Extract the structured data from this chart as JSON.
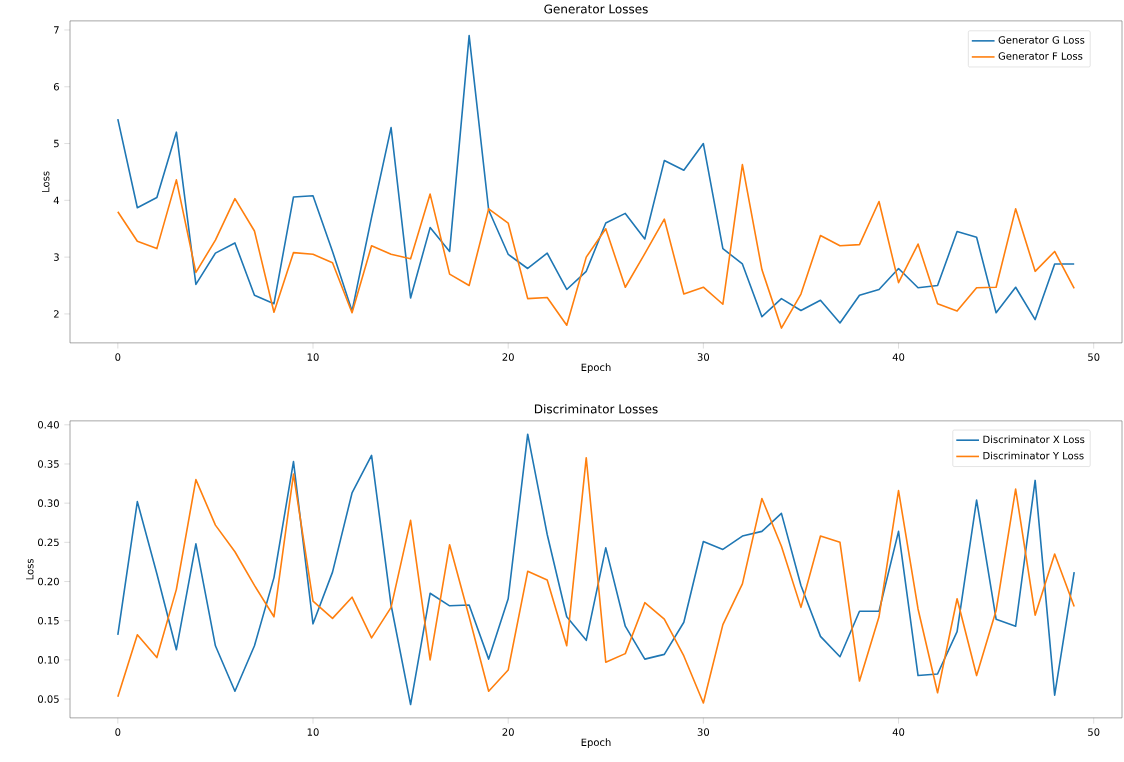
{
  "chart_data": [
    {
      "type": "line",
      "title": "Generator Losses",
      "xlabel": "Epoch",
      "ylabel": "Loss",
      "x": [
        0,
        1,
        2,
        3,
        4,
        5,
        6,
        7,
        8,
        9,
        10,
        11,
        12,
        13,
        14,
        15,
        16,
        17,
        18,
        19,
        20,
        21,
        22,
        23,
        24,
        25,
        26,
        27,
        28,
        29,
        30,
        31,
        32,
        33,
        34,
        35,
        36,
        37,
        38,
        39,
        40,
        41,
        42,
        43,
        44,
        45,
        46,
        47,
        48,
        49
      ],
      "xlim": [
        -2.45,
        51.45
      ],
      "ylim": [
        1.49,
        7.16
      ],
      "xticks": [
        0,
        10,
        20,
        30,
        40,
        50
      ],
      "yticks": [
        2,
        3,
        4,
        5,
        6,
        7
      ],
      "legend": "top right",
      "grid": false,
      "line_style": "solid",
      "marker": "none",
      "series": [
        {
          "name": "Generator G Loss",
          "color": "#1f77b4",
          "values": [
            5.43,
            3.87,
            4.05,
            5.2,
            2.52,
            3.07,
            3.25,
            2.33,
            2.18,
            4.06,
            4.08,
            3.1,
            2.05,
            3.7,
            5.28,
            2.28,
            3.52,
            3.1,
            6.9,
            3.83,
            3.05,
            2.8,
            3.07,
            2.43,
            2.75,
            3.6,
            3.77,
            3.32,
            4.7,
            4.53,
            5.0,
            3.15,
            2.88,
            1.95,
            2.27,
            2.06,
            2.24,
            1.84,
            2.33,
            2.43,
            2.8,
            2.46,
            2.5,
            3.45,
            3.35,
            2.02,
            2.47,
            1.9,
            2.88,
            2.88
          ]
        },
        {
          "name": "Generator F Loss",
          "color": "#ff7f0e",
          "values": [
            3.8,
            3.28,
            3.15,
            4.36,
            2.73,
            3.3,
            4.03,
            3.46,
            2.03,
            3.08,
            3.05,
            2.9,
            2.02,
            3.2,
            3.05,
            2.97,
            4.11,
            2.7,
            2.5,
            3.85,
            3.6,
            2.27,
            2.29,
            1.8,
            3.0,
            3.5,
            2.47,
            3.06,
            3.67,
            2.35,
            2.47,
            2.17,
            4.63,
            2.78,
            1.75,
            2.35,
            3.38,
            3.2,
            3.22,
            3.98,
            2.55,
            3.23,
            2.18,
            2.05,
            2.46,
            2.47,
            3.85,
            2.75,
            3.1,
            2.45
          ]
        }
      ]
    },
    {
      "type": "line",
      "title": "Discriminator Losses",
      "xlabel": "Epoch",
      "ylabel": "Loss",
      "x": [
        0,
        1,
        2,
        3,
        4,
        5,
        6,
        7,
        8,
        9,
        10,
        11,
        12,
        13,
        14,
        15,
        16,
        17,
        18,
        19,
        20,
        21,
        22,
        23,
        24,
        25,
        26,
        27,
        28,
        29,
        30,
        31,
        32,
        33,
        34,
        35,
        36,
        37,
        38,
        39,
        40,
        41,
        42,
        43,
        44,
        45,
        46,
        47,
        48,
        49
      ],
      "xlim": [
        -2.45,
        51.45
      ],
      "ylim": [
        0.026,
        0.405
      ],
      "xticks": [
        0,
        10,
        20,
        30,
        40,
        50
      ],
      "yticks": [
        0.05,
        {
          "value": 0.1,
          "label": "0.10"
        },
        0.15,
        {
          "value": 0.2,
          "label": "0.20"
        },
        0.25,
        {
          "value": 0.3,
          "label": "0.30"
        },
        0.35,
        {
          "value": 0.4,
          "label": "0.40"
        }
      ],
      "legend": "top right",
      "grid": false,
      "line_style": "solid",
      "marker": "none",
      "series": [
        {
          "name": "Discriminator X Loss",
          "color": "#1f77b4",
          "values": [
            0.132,
            0.302,
            0.21,
            0.113,
            0.248,
            0.118,
            0.06,
            0.118,
            0.205,
            0.353,
            0.146,
            0.212,
            0.313,
            0.361,
            0.17,
            0.043,
            0.185,
            0.169,
            0.17,
            0.101,
            0.178,
            0.388,
            0.26,
            0.155,
            0.125,
            0.243,
            0.143,
            0.101,
            0.107,
            0.148,
            0.251,
            0.241,
            0.258,
            0.264,
            0.287,
            0.195,
            0.13,
            0.104,
            0.162,
            0.162,
            0.264,
            0.08,
            0.082,
            0.136,
            0.304,
            0.152,
            0.143,
            0.329,
            0.055,
            0.212
          ]
        },
        {
          "name": "Discriminator Y Loss",
          "color": "#ff7f0e",
          "values": [
            0.053,
            0.132,
            0.103,
            0.19,
            0.33,
            0.272,
            0.238,
            0.195,
            0.155,
            0.337,
            0.175,
            0.153,
            0.18,
            0.128,
            0.167,
            0.278,
            0.1,
            0.247,
            0.155,
            0.06,
            0.087,
            0.213,
            0.202,
            0.118,
            0.358,
            0.097,
            0.108,
            0.173,
            0.152,
            0.105,
            0.045,
            0.145,
            0.197,
            0.306,
            0.245,
            0.167,
            0.258,
            0.25,
            0.073,
            0.155,
            0.316,
            0.165,
            0.058,
            0.178,
            0.08,
            0.163,
            0.318,
            0.157,
            0.235,
            0.168
          ]
        }
      ]
    }
  ]
}
